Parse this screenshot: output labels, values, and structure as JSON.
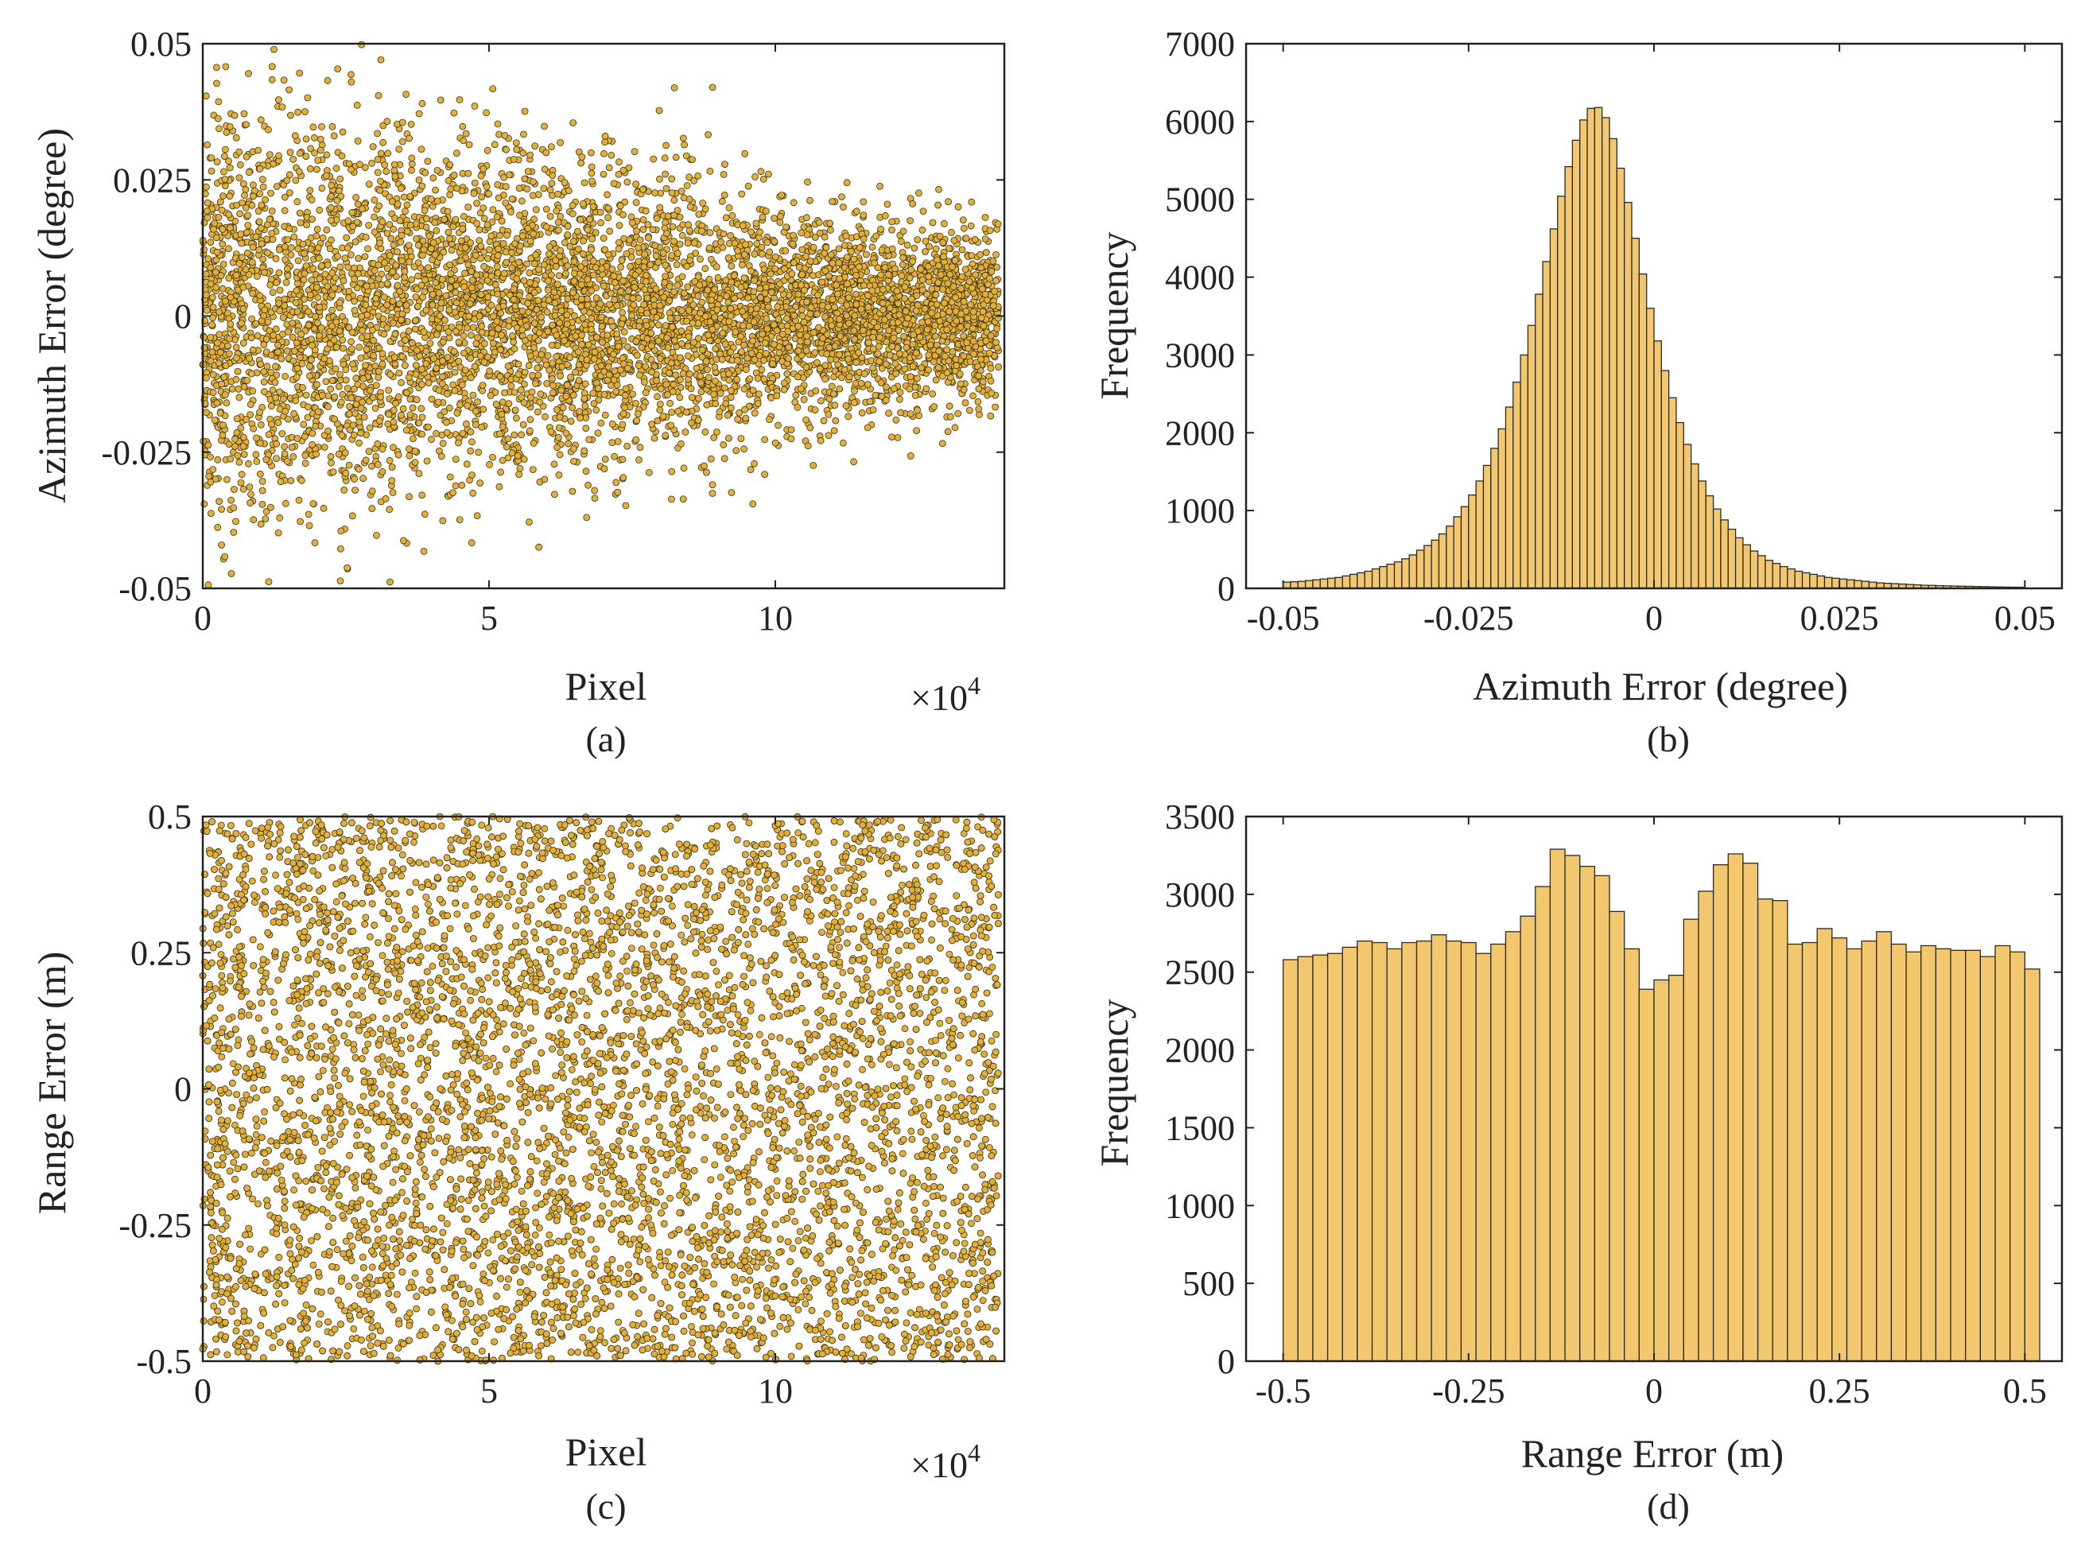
{
  "palette": {
    "marker_fill": "#E2B03A",
    "marker_edge": "#3C3216",
    "bar_fill": "#F2C76E",
    "bar_edge": "#2A2A2A",
    "axis": "#222222"
  },
  "chart_data": [
    {
      "id": "a",
      "type": "scatter",
      "caption": "(a)",
      "title": "",
      "xlabel": "Pixel",
      "ylabel": "Azimuth Error (degree)",
      "x_multiplier": "×10",
      "x_multiplier_exp": "4",
      "xlim": [
        0,
        14
      ],
      "ylim": [
        -0.05,
        0.05
      ],
      "xticks": [
        0,
        5,
        10
      ],
      "xtick_labels": [
        "0",
        "5",
        "10"
      ],
      "yticks": [
        -0.05,
        -0.025,
        0,
        0.025,
        0.05
      ],
      "ytick_labels": [
        "-0.05",
        "-0.025",
        "0",
        "0.025",
        "0.05"
      ],
      "x_range": [
        0,
        13.9
      ],
      "spread_profile": {
        "x": [
          0,
          1,
          2,
          3,
          4,
          5,
          6,
          7,
          8,
          9,
          10,
          11,
          12,
          13,
          13.9
        ],
        "std": [
          0.019,
          0.02,
          0.019,
          0.018,
          0.016,
          0.015,
          0.014,
          0.013,
          0.012,
          0.011,
          0.01,
          0.009,
          0.0085,
          0.008,
          0.008
        ]
      }
    },
    {
      "id": "b",
      "type": "bar",
      "caption": "(b)",
      "title": "",
      "xlabel": "Azimuth Error (degree)",
      "ylabel": "Frequency",
      "xlim": [
        -0.055,
        0.055
      ],
      "ylim": [
        0,
        7000
      ],
      "xticks": [
        -0.05,
        -0.025,
        0,
        0.025,
        0.05
      ],
      "xtick_labels": [
        "-0.05",
        "-0.025",
        "0",
        "0.025",
        "0.05"
      ],
      "yticks": [
        0,
        1000,
        2000,
        3000,
        4000,
        5000,
        6000,
        7000
      ],
      "ytick_labels": [
        "0",
        "1000",
        "2000",
        "3000",
        "4000",
        "5000",
        "6000",
        "7000"
      ],
      "bin_start": -0.05,
      "bin_width": 0.001,
      "values": [
        80,
        85,
        90,
        100,
        110,
        120,
        130,
        140,
        160,
        180,
        200,
        220,
        250,
        280,
        310,
        340,
        380,
        430,
        490,
        550,
        620,
        700,
        800,
        920,
        1050,
        1200,
        1380,
        1580,
        1800,
        2050,
        2330,
        2650,
        3000,
        3380,
        3780,
        4200,
        4620,
        5040,
        5420,
        5760,
        6020,
        6170,
        6180,
        6050,
        5780,
        5400,
        4960,
        4500,
        4040,
        3600,
        3180,
        2800,
        2450,
        2130,
        1850,
        1600,
        1380,
        1190,
        1020,
        880,
        760,
        650,
        560,
        480,
        420,
        360,
        320,
        280,
        250,
        220,
        200,
        180,
        160,
        140,
        130,
        120,
        110,
        100,
        90,
        80,
        70,
        65,
        60,
        55,
        50,
        45,
        40,
        38,
        35,
        32,
        30,
        28,
        26,
        24,
        22,
        20,
        18,
        16,
        15,
        14
      ]
    },
    {
      "id": "c",
      "type": "scatter",
      "caption": "(c)",
      "title": "",
      "xlabel": "Pixel",
      "ylabel": "Range Error (m)",
      "x_multiplier": "×10",
      "x_multiplier_exp": "4",
      "xlim": [
        0,
        14
      ],
      "ylim": [
        -0.5,
        0.5
      ],
      "xticks": [
        0,
        5,
        10
      ],
      "xtick_labels": [
        "0",
        "5",
        "10"
      ],
      "yticks": [
        -0.5,
        -0.25,
        0,
        0.25,
        0.5
      ],
      "ytick_labels": [
        "-0.5",
        "-0.25",
        "0",
        "0.25",
        "0.5"
      ],
      "x_range": [
        0,
        13.9
      ],
      "distribution": "uniform"
    },
    {
      "id": "d",
      "type": "bar",
      "caption": "(d)",
      "title": "",
      "xlabel": "Range Error (m)",
      "ylabel": "Frequency",
      "xlim": [
        -0.55,
        0.55
      ],
      "ylim": [
        0,
        3500
      ],
      "xticks": [
        -0.5,
        -0.25,
        0,
        0.25,
        0.5
      ],
      "xtick_labels": [
        "-0.5",
        "-0.25",
        "0",
        "0.25",
        "0.5"
      ],
      "yticks": [
        0,
        500,
        1000,
        1500,
        2000,
        2500,
        3000,
        3500
      ],
      "ytick_labels": [
        "0",
        "500",
        "1000",
        "1500",
        "2000",
        "2500",
        "3000",
        "3500"
      ],
      "bin_start": -0.5,
      "bin_width": 0.02,
      "values": [
        2580,
        2600,
        2610,
        2620,
        2660,
        2700,
        2690,
        2650,
        2690,
        2700,
        2740,
        2700,
        2690,
        2620,
        2680,
        2760,
        2860,
        3050,
        3290,
        3250,
        3180,
        3120,
        2890,
        2650,
        2390,
        2450,
        2480,
        2840,
        3020,
        3190,
        3260,
        3200,
        2970,
        2960,
        2680,
        2690,
        2780,
        2720,
        2650,
        2700,
        2760,
        2680,
        2630,
        2670,
        2650,
        2640,
        2640,
        2600,
        2670,
        2630,
        2520
      ]
    }
  ]
}
